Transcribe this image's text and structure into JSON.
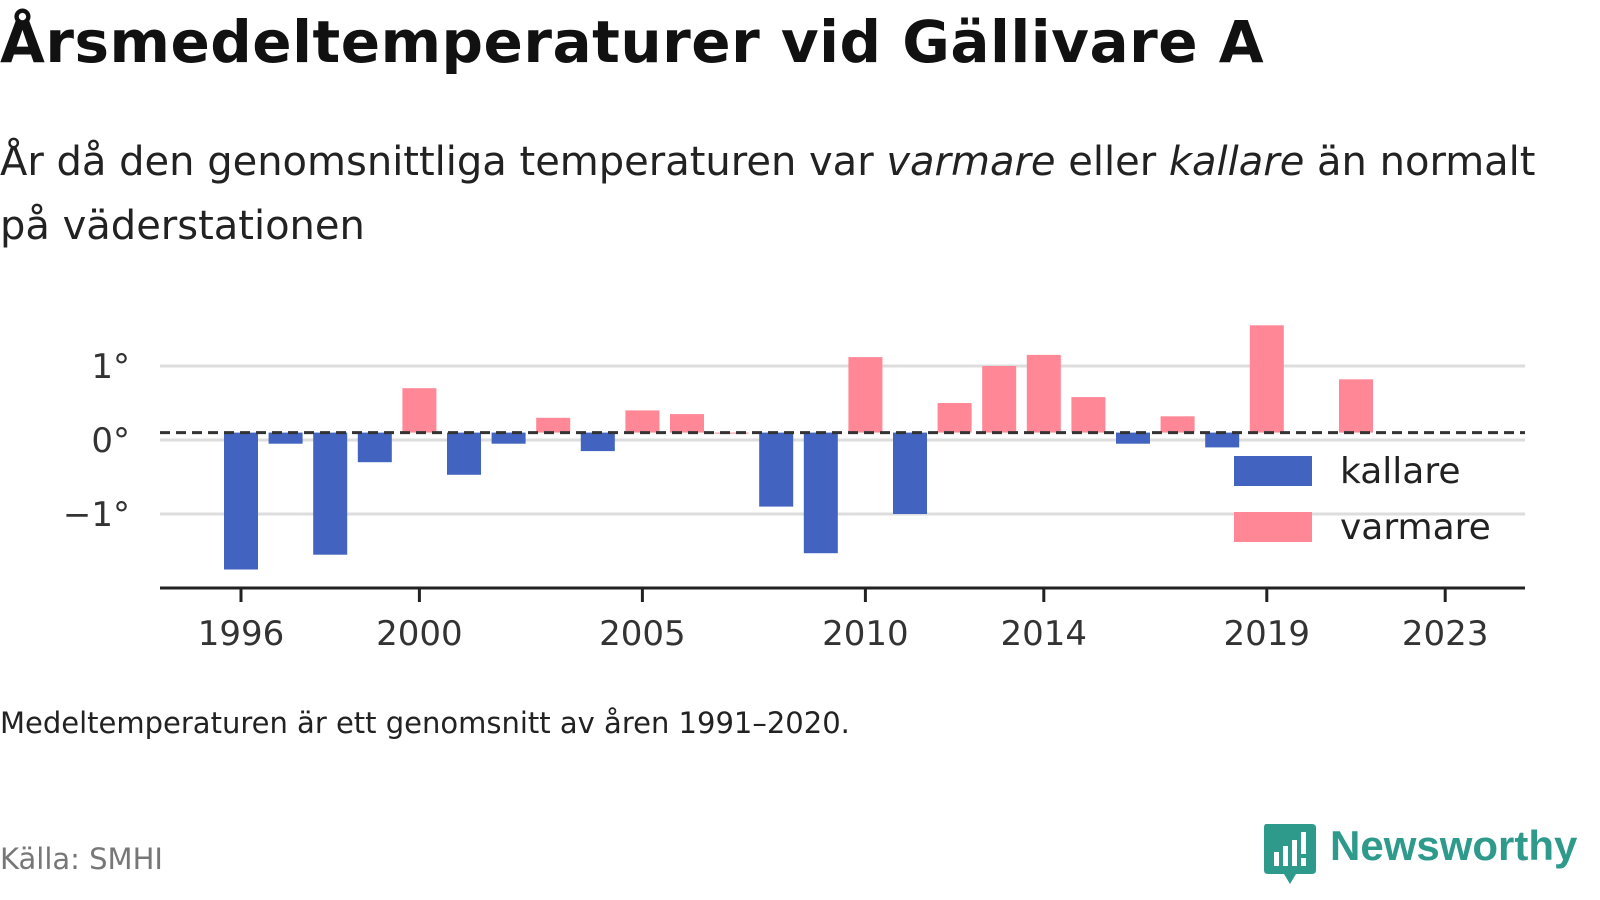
{
  "header": {
    "title": "Årsmedeltemperaturer vid Gällivare A",
    "subtitle_pre": "År då den genomsnittliga temperaturen var ",
    "subtitle_warm": "varmare",
    "subtitle_mid": " eller ",
    "subtitle_cold": "kallare",
    "subtitle_post": " än normalt på väderstationen"
  },
  "footer": {
    "note": "Medeltemperaturen är ett genomsnitt av åren 1991–2020.",
    "source": "Källa: SMHI",
    "brand": "Newsworthy"
  },
  "colors": {
    "cold": "#4263bf",
    "warm": "#ff8796",
    "grid": "#dddddd",
    "axis": "#222222",
    "baseline": "#333333",
    "brand": "#2e9a8c"
  },
  "chart_data": {
    "type": "bar",
    "title": "Årsmedeltemperaturer vid Gällivare A",
    "xlabel": "",
    "ylabel": "",
    "x": [
      1996,
      1997,
      1998,
      1999,
      2000,
      2001,
      2002,
      2003,
      2004,
      2005,
      2006,
      2007,
      2008,
      2009,
      2010,
      2011,
      2012,
      2013,
      2014,
      2015,
      2016,
      2017,
      2018,
      2019,
      2020,
      2021,
      2022,
      2023
    ],
    "values": [
      -1.75,
      -0.05,
      -1.55,
      -0.3,
      0.7,
      -0.47,
      -0.05,
      0.3,
      -0.15,
      0.4,
      0.35,
      0.1,
      -0.9,
      -1.53,
      1.12,
      -1.0,
      0.5,
      1.0,
      1.15,
      0.58,
      -0.05,
      0.32,
      -0.1,
      1.55,
      0.0,
      0.82,
      0.0,
      0.0
    ],
    "baseline": 0.1,
    "ylim": [
      -2.0,
      2.0
    ],
    "yticks": [
      -1,
      0,
      1
    ],
    "ytick_labels": [
      "−1°",
      "0°",
      "1°"
    ],
    "xticks": [
      1996,
      2000,
      2005,
      2010,
      2014,
      2019,
      2023
    ],
    "xtick_labels": [
      "1996",
      "2000",
      "2005",
      "2010",
      "2014",
      "2019",
      "2023"
    ],
    "legend": {
      "position": "right",
      "items": [
        {
          "label": "kallare",
          "key": "cold"
        },
        {
          "label": "varmare",
          "key": "warm"
        }
      ]
    },
    "grid": true
  }
}
